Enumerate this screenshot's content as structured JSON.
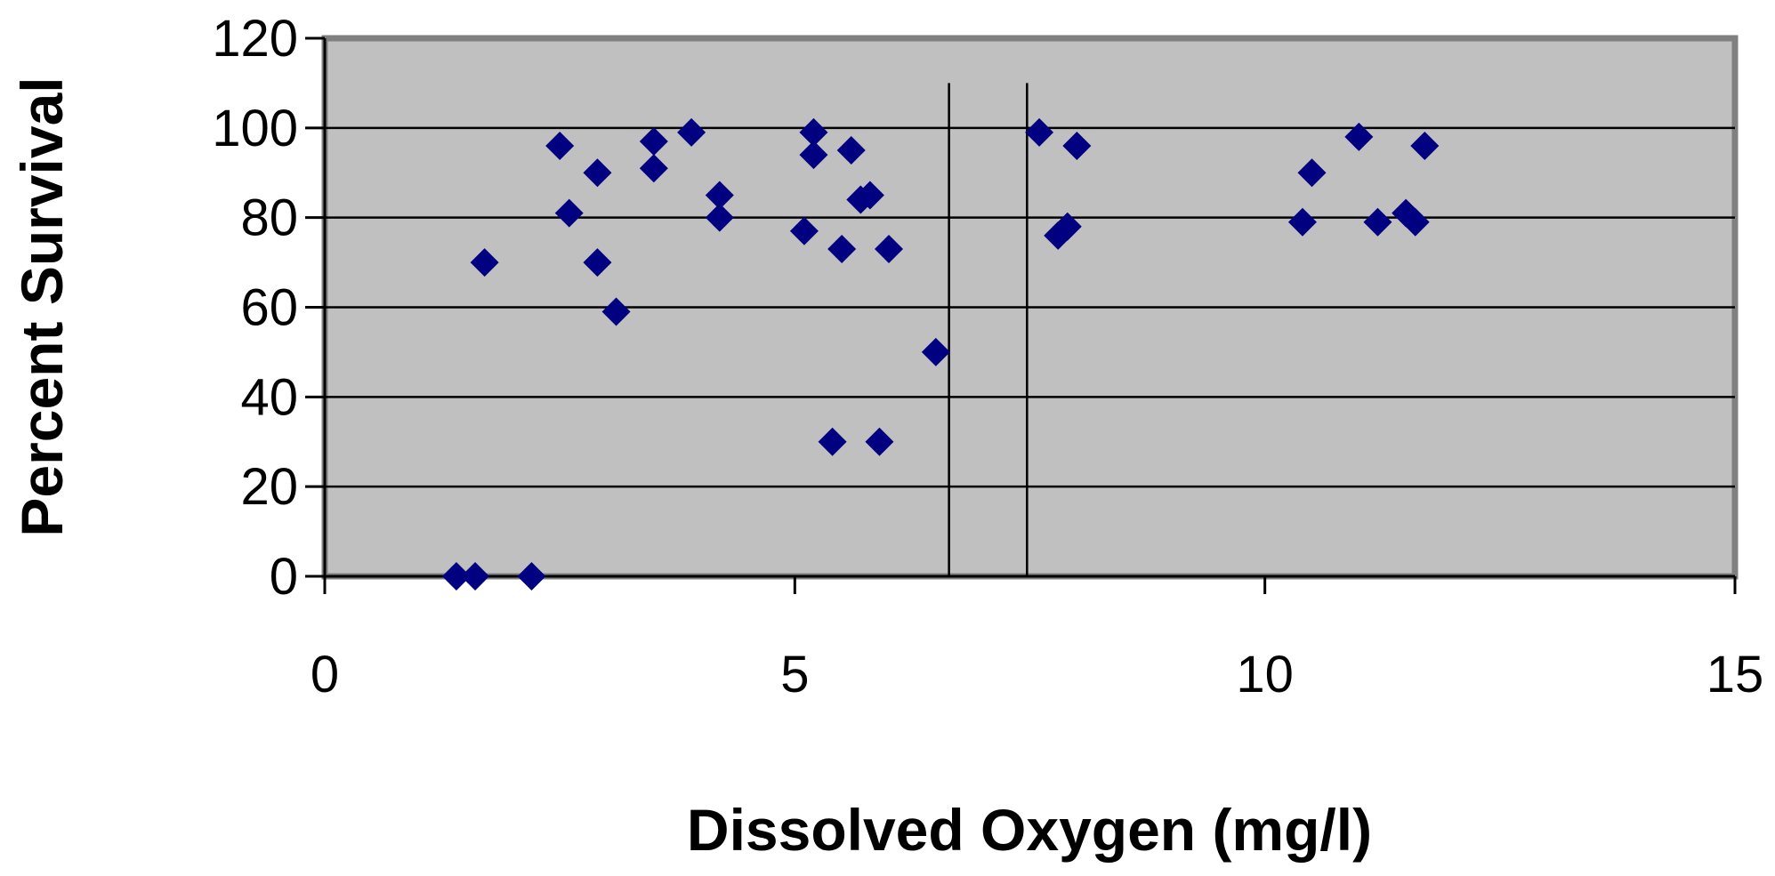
{
  "chart_data": {
    "type": "scatter",
    "xlabel": "Dissolved Oxygen (mg/l)",
    "ylabel": "Percent Survival",
    "xlim": [
      0,
      15
    ],
    "ylim": [
      0,
      120
    ],
    "x_ticks": [
      0,
      5,
      10,
      15
    ],
    "y_ticks": [
      0,
      20,
      40,
      60,
      80,
      100,
      120
    ],
    "grid": {
      "horizontal": true,
      "vertical": false
    },
    "vertical_reference_lines": [
      {
        "x": 6.64,
        "y_top": 110
      },
      {
        "x": 7.47,
        "y_top": 110
      }
    ],
    "colors": {
      "plot_background": "#c0c0c0",
      "marker": "#000080",
      "frame": "#808080"
    },
    "series": [
      {
        "marker": "diamond",
        "points": [
          {
            "x": 1.4,
            "y": 0
          },
          {
            "x": 1.6,
            "y": 0
          },
          {
            "x": 2.2,
            "y": 0
          },
          {
            "x": 1.7,
            "y": 70
          },
          {
            "x": 2.5,
            "y": 96
          },
          {
            "x": 2.6,
            "y": 81
          },
          {
            "x": 2.9,
            "y": 90
          },
          {
            "x": 2.9,
            "y": 70
          },
          {
            "x": 3.1,
            "y": 59
          },
          {
            "x": 3.5,
            "y": 97
          },
          {
            "x": 3.5,
            "y": 91
          },
          {
            "x": 3.9,
            "y": 99
          },
          {
            "x": 4.2,
            "y": 85
          },
          {
            "x": 4.2,
            "y": 80
          },
          {
            "x": 5.1,
            "y": 77
          },
          {
            "x": 5.2,
            "y": 99
          },
          {
            "x": 5.2,
            "y": 94
          },
          {
            "x": 5.4,
            "y": 30
          },
          {
            "x": 5.5,
            "y": 73
          },
          {
            "x": 5.6,
            "y": 95
          },
          {
            "x": 5.7,
            "y": 84
          },
          {
            "x": 5.8,
            "y": 85
          },
          {
            "x": 5.9,
            "y": 30
          },
          {
            "x": 6.0,
            "y": 73
          },
          {
            "x": 6.5,
            "y": 50
          },
          {
            "x": 7.6,
            "y": 99
          },
          {
            "x": 7.8,
            "y": 76
          },
          {
            "x": 7.9,
            "y": 78
          },
          {
            "x": 8.0,
            "y": 96
          },
          {
            "x": 10.4,
            "y": 79
          },
          {
            "x": 10.5,
            "y": 90
          },
          {
            "x": 11.0,
            "y": 98
          },
          {
            "x": 11.2,
            "y": 79
          },
          {
            "x": 11.5,
            "y": 81
          },
          {
            "x": 11.6,
            "y": 79
          },
          {
            "x": 11.7,
            "y": 96
          }
        ]
      }
    ]
  }
}
